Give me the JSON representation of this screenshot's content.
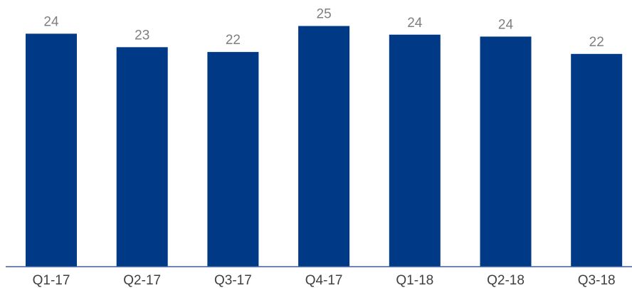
{
  "chart_data": {
    "type": "bar",
    "categories": [
      "Q1-17",
      "Q2-17",
      "Q3-17",
      "Q4-17",
      "Q1-18",
      "Q2-18",
      "Q3-18"
    ],
    "values": [
      24.2,
      22.8,
      22.3,
      25.0,
      24.1,
      23.9,
      22.1
    ],
    "value_labels": [
      "24",
      "23",
      "22",
      "25",
      "24",
      "24",
      "22"
    ],
    "color": "#003a87",
    "ylim": [
      0,
      27.7
    ]
  }
}
